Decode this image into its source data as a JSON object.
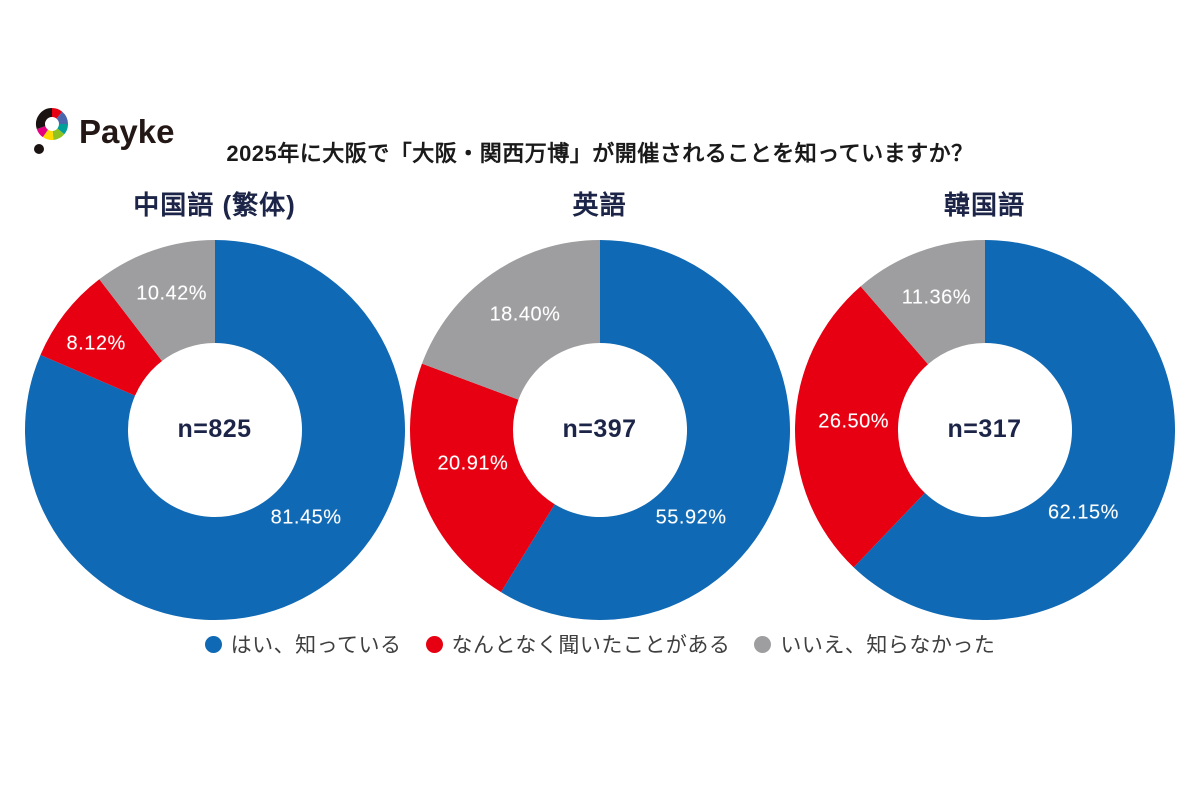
{
  "logo": {
    "text": "Payke",
    "text_color": "#231815",
    "mark_ring_colors": [
      {
        "from": 0,
        "to": 40,
        "color": "#E50012"
      },
      {
        "from": 40,
        "to": 90,
        "color": "#4B66AC"
      },
      {
        "from": 90,
        "to": 130,
        "color": "#00A099"
      },
      {
        "from": 130,
        "to": 175,
        "color": "#8FC31F"
      },
      {
        "from": 175,
        "to": 215,
        "color": "#FFD900"
      },
      {
        "from": 215,
        "to": 252,
        "color": "#E4007F"
      },
      {
        "from": 252,
        "to": 360,
        "color": "#1A1311"
      }
    ],
    "dot_color": "#1A1311"
  },
  "header": {
    "title": "2025年に大阪で「大阪・関西万博」が開催されることを知っていますか？",
    "title_color": "#1A1A1A"
  },
  "legend": {
    "position": "bottom-center",
    "items": [
      {
        "label": "はい、知っている",
        "color": "#1069B4"
      },
      {
        "label": "なんとなく聞いたことがある",
        "color": "#E60012"
      },
      {
        "label": "いいえ、知らなかった",
        "color": "#9E9EA0"
      }
    ]
  },
  "styles": {
    "chart_title_color": "#1C2547",
    "center_label_color": "#1C2547",
    "slice_label_color": "#FFFFFF",
    "legend_text_color": "#3F3F3F"
  },
  "chart_data": [
    {
      "type": "pie",
      "subtype": "donut",
      "title": "中国語 (繁体)",
      "center_label": "n=825",
      "sample_size": 825,
      "hole_ratio": 0.458,
      "slices": [
        {
          "name": "はい、知っている",
          "value": 81.45,
          "label": "81.45%",
          "color": "#1069B4",
          "label_angle": 134,
          "label_r": 0.67
        },
        {
          "name": "なんとなく聞いたことがある",
          "value": 8.12,
          "label": "8.12%",
          "color": "#E60012",
          "label_angle": 306,
          "label_r": 0.77
        },
        {
          "name": "いいえ、知らなかった",
          "value": 10.42,
          "label": "10.42%",
          "color": "#9E9EA0",
          "label_angle": 342.5,
          "label_r": 0.75
        }
      ]
    },
    {
      "type": "pie",
      "subtype": "donut",
      "title": "英語",
      "center_label": "n=397",
      "sample_size": 397,
      "hole_ratio": 0.458,
      "slices": [
        {
          "name": "はい、知っている",
          "value": 55.92,
          "label": "55.92%",
          "color": "#1069B4",
          "label_angle": 134,
          "label_r": 0.67
        },
        {
          "name": "なんとなく聞いたことがある",
          "value": 20.91,
          "label": "20.91%",
          "color": "#E60012",
          "label_angle": 255,
          "label_r": 0.69
        },
        {
          "name": "いいえ、知らなかった",
          "value": 18.4,
          "label": "18.40%",
          "color": "#9E9EA0",
          "label_angle": 327,
          "label_r": 0.72
        }
      ]
    },
    {
      "type": "pie",
      "subtype": "donut",
      "title": "韓国語",
      "center_label": "n=317",
      "sample_size": 317,
      "hole_ratio": 0.458,
      "slices": [
        {
          "name": "はい、知っている",
          "value": 62.15,
          "label": "62.15%",
          "color": "#1069B4",
          "label_angle": 130,
          "label_r": 0.68
        },
        {
          "name": "なんとなく聞いたことがある",
          "value": 26.5,
          "label": "26.50%",
          "color": "#E60012",
          "label_angle": 273.5,
          "label_r": 0.69
        },
        {
          "name": "いいえ、知らなかった",
          "value": 11.36,
          "label": "11.36%",
          "color": "#9E9EA0",
          "label_angle": 340,
          "label_r": 0.74
        }
      ]
    }
  ]
}
